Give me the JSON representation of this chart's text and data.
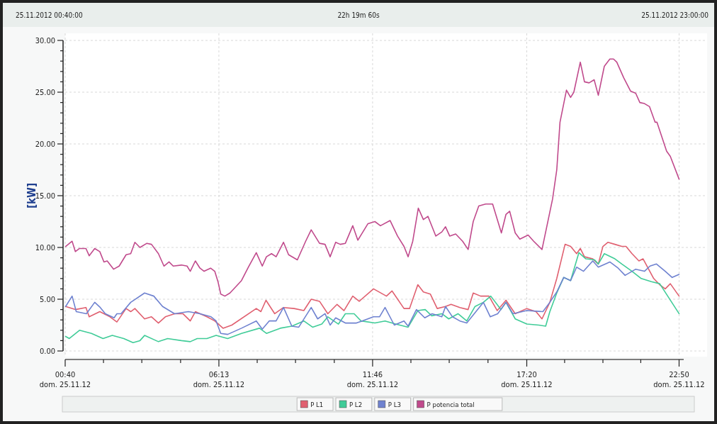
{
  "chart_data": {
    "type": "line",
    "ylabel": "[kW]",
    "annotations": [
      "25.11.2012 00:40:00",
      "22h 19m 60s",
      "25.11.2012 23:00:00"
    ],
    "xlim": [
      "2012-11-25T00:40",
      "2012-11-25T23:00"
    ],
    "xticks": [
      {
        "value": "2012-11-25T00:40",
        "label": "00:40\ndom. 25.11.12"
      },
      {
        "value": "2012-11-25T02:03",
        "label": null
      },
      {
        "value": "2012-11-25T03:26",
        "label": null
      },
      {
        "value": "2012-11-25T04:50",
        "label": null
      },
      {
        "value": "2012-11-25T06:13",
        "label": "06:13\ndom. 25.11.12"
      },
      {
        "value": "2012-11-25T07:36",
        "label": null
      },
      {
        "value": "2012-11-25T08:59",
        "label": null
      },
      {
        "value": "2012-11-25T10:23",
        "label": null
      },
      {
        "value": "2012-11-25T11:46",
        "label": "11:46\ndom. 25.11.12"
      },
      {
        "value": "2012-11-25T13:09",
        "label": null
      },
      {
        "value": "2012-11-25T14:32",
        "label": null
      },
      {
        "value": "2012-11-25T15:56",
        "label": null
      },
      {
        "value": "2012-11-25T17:20",
        "label": "17:20\ndom. 25.11.12"
      },
      {
        "value": "2012-11-25T18:42",
        "label": null
      },
      {
        "value": "2012-11-25T20:05",
        "label": null
      },
      {
        "value": "2012-11-25T21:27",
        "label": null
      },
      {
        "value": "2012-11-25T22:50",
        "label": "22:50\ndom. 25.11.12"
      }
    ],
    "ylim": [
      0,
      30
    ],
    "yticks": [
      {
        "value": 0,
        "label": "0.00"
      },
      {
        "value": 1,
        "label": null
      },
      {
        "value": 2,
        "label": null
      },
      {
        "value": 3,
        "label": null
      },
      {
        "value": 4,
        "label": null
      },
      {
        "value": 5,
        "label": "5.00"
      },
      {
        "value": 6,
        "label": null
      },
      {
        "value": 7,
        "label": null
      },
      {
        "value": 8,
        "label": null
      },
      {
        "value": 9,
        "label": null
      },
      {
        "value": 10,
        "label": "10.00"
      },
      {
        "value": 11,
        "label": null
      },
      {
        "value": 12,
        "label": null
      },
      {
        "value": 13,
        "label": null
      },
      {
        "value": 14,
        "label": null
      },
      {
        "value": 15,
        "label": "15.00"
      },
      {
        "value": 16,
        "label": null
      },
      {
        "value": 17,
        "label": null
      },
      {
        "value": 18,
        "label": null
      },
      {
        "value": 19,
        "label": null
      },
      {
        "value": 20,
        "label": "20.00"
      },
      {
        "value": 21,
        "label": null
      },
      {
        "value": 22,
        "label": null
      },
      {
        "value": 23,
        "label": null
      },
      {
        "value": 24,
        "label": null
      },
      {
        "value": 25,
        "label": "25.00"
      },
      {
        "value": 26,
        "label": null
      },
      {
        "value": 27,
        "label": null
      },
      {
        "value": 28,
        "label": null
      },
      {
        "value": 29,
        "label": null
      },
      {
        "value": 30,
        "label": "30.00"
      }
    ],
    "grid": true,
    "legend": "bottom",
    "marker": "none",
    "line_style": "solid",
    "series": [
      {
        "name": "P L1",
        "color": "#e06070",
        "x": [
          "2012-11-25T00:41",
          "2012-11-25T01:02",
          "2012-11-25T01:25",
          "2012-11-25T01:32",
          "2012-11-25T01:55",
          "2012-11-25T02:17",
          "2012-11-25T02:32",
          "2012-11-25T02:52",
          "2012-11-25T03:02",
          "2012-11-25T03:11",
          "2012-11-25T03:32",
          "2012-11-25T03:47",
          "2012-11-25T04:02",
          "2012-11-25T04:17",
          "2012-11-25T04:37",
          "2012-11-25T04:55",
          "2012-11-25T05:11",
          "2012-11-25T05:22",
          "2012-11-25T05:47",
          "2012-11-25T06:04",
          "2012-11-25T06:22",
          "2012-11-25T06:41",
          "2012-11-25T07:34",
          "2012-11-25T07:44",
          "2012-11-25T07:55",
          "2012-11-25T08:14",
          "2012-11-25T08:33",
          "2012-11-25T08:56",
          "2012-11-25T09:17",
          "2012-11-25T09:33",
          "2012-11-25T09:51",
          "2012-11-25T10:09",
          "2012-11-25T10:29",
          "2012-11-25T10:44",
          "2012-11-25T11:03",
          "2012-11-25T11:17",
          "2012-11-25T11:48",
          "2012-11-25T12:16",
          "2012-11-25T12:28",
          "2012-11-25T12:54",
          "2012-11-25T13:06",
          "2012-11-25T13:24",
          "2012-11-25T13:36",
          "2012-11-25T13:51",
          "2012-11-25T14:06",
          "2012-11-25T14:24",
          "2012-11-25T14:36",
          "2012-11-25T14:55",
          "2012-11-25T15:13",
          "2012-11-25T15:24",
          "2012-11-25T15:40",
          "2012-11-25T15:58",
          "2012-11-25T16:16",
          "2012-11-25T16:35",
          "2012-11-25T16:55",
          "2012-11-25T17:20",
          "2012-11-25T17:40",
          "2012-11-25T17:53",
          "2012-11-25T18:10",
          "2012-11-25T18:25",
          "2012-11-25T18:43",
          "2012-11-25T18:55",
          "2012-11-25T19:08",
          "2012-11-25T19:16",
          "2012-11-25T19:25",
          "2012-11-25T19:43",
          "2012-11-25T19:55",
          "2012-11-25T20:05",
          "2012-11-25T20:16",
          "2012-11-25T20:31",
          "2012-11-25T20:46",
          "2012-11-25T20:55",
          "2012-11-25T21:08",
          "2012-11-25T21:23",
          "2012-11-25T21:32",
          "2012-11-25T21:55",
          "2012-11-25T22:08",
          "2012-11-25T22:20",
          "2012-11-25T22:31",
          "2012-11-25T22:50"
        ],
        "values": [
          4.3,
          4.0,
          4.2,
          3.3,
          3.8,
          3.3,
          2.8,
          4.1,
          3.8,
          4.1,
          3.1,
          3.3,
          2.7,
          3.3,
          3.6,
          3.6,
          2.9,
          3.8,
          3.3,
          2.9,
          2.2,
          2.5,
          4.1,
          3.8,
          4.9,
          3.6,
          4.2,
          4.1,
          3.9,
          5.0,
          4.8,
          3.6,
          4.5,
          3.9,
          5.3,
          4.8,
          6.0,
          5.3,
          5.8,
          4.1,
          4.1,
          6.4,
          5.7,
          5.5,
          4.1,
          4.3,
          4.5,
          4.2,
          4.0,
          5.6,
          5.3,
          5.3,
          3.9,
          4.9,
          3.6,
          4.1,
          3.8,
          3.1,
          4.7,
          7.0,
          10.3,
          10.1,
          9.4,
          9.9,
          9.1,
          8.9,
          8.4,
          10.1,
          10.5,
          10.3,
          10.1,
          10.1,
          9.4,
          8.7,
          8.9,
          7.0,
          6.4,
          6.0,
          6.5,
          5.3
        ]
      },
      {
        "name": "P L2",
        "color": "#40cc98",
        "x": [
          "2012-11-25T00:41",
          "2012-11-25T00:49",
          "2012-11-25T01:11",
          "2012-11-25T01:37",
          "2012-11-25T02:02",
          "2012-11-25T02:22",
          "2012-11-25T02:47",
          "2012-11-25T03:07",
          "2012-11-25T03:22",
          "2012-11-25T03:32",
          "2012-11-25T04:02",
          "2012-11-25T04:22",
          "2012-11-25T04:52",
          "2012-11-25T05:11",
          "2012-11-25T05:26",
          "2012-11-25T05:47",
          "2012-11-25T06:07",
          "2012-11-25T06:32",
          "2012-11-25T07:02",
          "2012-11-25T07:41",
          "2012-11-25T07:56",
          "2012-11-25T08:26",
          "2012-11-25T08:51",
          "2012-11-25T09:17",
          "2012-11-25T09:36",
          "2012-11-25T09:56",
          "2012-11-25T10:09",
          "2012-11-25T10:32",
          "2012-11-25T10:47",
          "2012-11-25T11:06",
          "2012-11-25T11:21",
          "2012-11-25T11:51",
          "2012-11-25T12:13",
          "2012-11-25T12:36",
          "2012-11-25T13:03",
          "2012-11-25T13:24",
          "2012-11-25T13:40",
          "2012-11-25T13:54",
          "2012-11-25T14:16",
          "2012-11-25T14:31",
          "2012-11-25T14:51",
          "2012-11-25T15:10",
          "2012-11-25T15:28",
          "2012-11-25T15:46",
          "2012-11-25T16:02",
          "2012-11-25T16:24",
          "2012-11-25T16:35",
          "2012-11-25T16:55",
          "2012-11-25T17:20",
          "2012-11-25T17:46",
          "2012-11-25T18:01",
          "2012-11-25T18:10",
          "2012-11-25T18:25",
          "2012-11-25T18:40",
          "2012-11-25T18:55",
          "2012-11-25T19:13",
          "2012-11-25T19:28",
          "2012-11-25T19:47",
          "2012-11-25T19:55",
          "2012-11-25T20:08",
          "2012-11-25T20:31",
          "2012-11-25T20:46",
          "2012-11-25T21:08",
          "2012-11-25T21:28",
          "2012-11-25T21:50",
          "2012-11-25T22:08",
          "2012-11-25T22:50"
        ],
        "values": [
          1.4,
          1.2,
          2.0,
          1.7,
          1.2,
          1.5,
          1.2,
          0.8,
          1.0,
          1.5,
          0.9,
          1.2,
          1.0,
          0.9,
          1.2,
          1.2,
          1.5,
          1.2,
          1.7,
          2.2,
          1.7,
          2.2,
          2.4,
          2.9,
          2.3,
          2.6,
          3.3,
          2.6,
          3.6,
          3.6,
          2.9,
          2.7,
          2.9,
          2.6,
          2.3,
          3.9,
          4.0,
          3.4,
          3.6,
          3.1,
          3.6,
          2.9,
          4.3,
          4.7,
          5.3,
          4.0,
          4.7,
          3.1,
          2.6,
          2.5,
          2.4,
          3.8,
          5.6,
          7.1,
          6.8,
          9.5,
          8.9,
          8.8,
          8.4,
          9.4,
          8.9,
          8.4,
          7.7,
          7.0,
          6.7,
          6.5,
          3.6
        ]
      },
      {
        "name": "P L3",
        "color": "#6f82d0",
        "x": [
          "2012-11-25T00:41",
          "2012-11-25T00:55",
          "2012-11-25T01:04",
          "2012-11-25T01:26",
          "2012-11-25T01:44",
          "2012-11-25T01:56",
          "2012-11-25T02:07",
          "2012-11-25T02:26",
          "2012-11-25T02:32",
          "2012-11-25T02:41",
          "2012-11-25T03:02",
          "2012-11-25T03:32",
          "2012-11-25T03:52",
          "2012-11-25T04:11",
          "2012-11-25T04:37",
          "2012-11-25T05:07",
          "2012-11-25T05:32",
          "2012-11-25T05:56",
          "2012-11-25T06:07",
          "2012-11-25T06:17",
          "2012-11-25T06:32",
          "2012-11-25T07:02",
          "2012-11-25T07:34",
          "2012-11-25T07:47",
          "2012-11-25T08:02",
          "2012-11-25T08:17",
          "2012-11-25T08:33",
          "2012-11-25T08:51",
          "2012-11-25T09:06",
          "2012-11-25T09:33",
          "2012-11-25T09:47",
          "2012-11-25T10:03",
          "2012-11-25T10:14",
          "2012-11-25T10:26",
          "2012-11-25T10:47",
          "2012-11-25T11:11",
          "2012-11-25T11:48",
          "2012-11-25T12:01",
          "2012-11-25T12:13",
          "2012-11-25T12:33",
          "2012-11-25T12:54",
          "2012-11-25T13:03",
          "2012-11-25T13:21",
          "2012-11-25T13:39",
          "2012-11-25T13:55",
          "2012-11-25T14:16",
          "2012-11-25T14:24",
          "2012-11-25T14:39",
          "2012-11-25T14:55",
          "2012-11-25T15:10",
          "2012-11-25T15:46",
          "2012-11-25T16:01",
          "2012-11-25T16:17",
          "2012-11-25T16:35",
          "2012-11-25T16:50",
          "2012-11-25T17:20",
          "2012-11-25T17:55",
          "2012-11-25T18:10",
          "2012-11-25T18:25",
          "2012-11-25T18:40",
          "2012-11-25T18:55",
          "2012-11-25T19:08",
          "2012-11-25T19:23",
          "2012-11-25T19:43",
          "2012-11-25T19:55",
          "2012-11-25T20:20",
          "2012-11-25T20:38",
          "2012-11-25T20:53",
          "2012-11-25T21:16",
          "2012-11-25T21:35",
          "2012-11-25T21:47",
          "2012-11-25T22:01",
          "2012-11-25T22:20",
          "2012-11-25T22:35",
          "2012-11-25T22:50"
        ],
        "values": [
          4.3,
          5.3,
          3.8,
          3.6,
          4.7,
          4.2,
          3.6,
          3.2,
          3.6,
          3.6,
          4.7,
          5.6,
          5.3,
          4.3,
          3.6,
          3.8,
          3.6,
          3.3,
          2.9,
          1.7,
          1.6,
          2.2,
          2.9,
          2.1,
          2.9,
          2.9,
          4.2,
          2.4,
          2.3,
          4.2,
          3.1,
          3.6,
          2.5,
          3.2,
          2.7,
          2.7,
          3.3,
          3.3,
          4.2,
          2.5,
          2.9,
          2.4,
          4.0,
          3.2,
          3.6,
          3.3,
          4.3,
          3.3,
          2.9,
          2.7,
          4.7,
          3.3,
          3.6,
          4.7,
          3.6,
          3.9,
          3.8,
          4.7,
          5.7,
          7.1,
          6.8,
          8.1,
          7.7,
          8.7,
          8.1,
          8.6,
          8.0,
          7.3,
          7.9,
          7.7,
          8.2,
          8.4,
          7.7,
          7.1,
          7.4
        ]
      },
      {
        "name": "P potencia total",
        "color": "#c04a8c",
        "x": [
          "2012-11-25T00:41",
          "2012-11-25T00:55",
          "2012-11-25T01:02",
          "2012-11-25T01:11",
          "2012-11-25T01:25",
          "2012-11-25T01:32",
          "2012-11-25T01:44",
          "2012-11-25T01:55",
          "2012-11-25T02:04",
          "2012-11-25T02:11",
          "2012-11-25T02:25",
          "2012-11-25T02:37",
          "2012-11-25T02:52",
          "2012-11-25T03:02",
          "2012-11-25T03:11",
          "2012-11-25T03:22",
          "2012-11-25T03:37",
          "2012-11-25T03:47",
          "2012-11-25T04:02",
          "2012-11-25T04:14",
          "2012-11-25T04:25",
          "2012-11-25T04:34",
          "2012-11-25T04:52",
          "2012-11-25T05:04",
          "2012-11-25T05:11",
          "2012-11-25T05:22",
          "2012-11-25T05:32",
          "2012-11-25T05:41",
          "2012-11-25T05:55",
          "2012-11-25T06:04",
          "2012-11-25T06:11",
          "2012-11-25T06:17",
          "2012-11-25T06:26",
          "2012-11-25T06:37",
          "2012-11-25T07:02",
          "2012-11-25T07:17",
          "2012-11-25T07:34",
          "2012-11-25T07:47",
          "2012-11-25T07:56",
          "2012-11-25T08:07",
          "2012-11-25T08:17",
          "2012-11-25T08:33",
          "2012-11-25T08:44",
          "2012-11-25T09:03",
          "2012-11-25T09:21",
          "2012-11-25T09:33",
          "2012-11-25T09:51",
          "2012-11-25T10:03",
          "2012-11-25T10:14",
          "2012-11-25T10:26",
          "2012-11-25T10:36",
          "2012-11-25T10:47",
          "2012-11-25T11:03",
          "2012-11-25T11:14",
          "2012-11-25T11:36",
          "2012-11-25T11:51",
          "2012-11-25T12:03",
          "2012-11-25T12:24",
          "2012-11-25T12:40",
          "2012-11-25T12:54",
          "2012-11-25T13:03",
          "2012-11-25T13:13",
          "2012-11-25T13:25",
          "2012-11-25T13:36",
          "2012-11-25T13:46",
          "2012-11-25T14:03",
          "2012-11-25T14:16",
          "2012-11-25T14:24",
          "2012-11-25T14:33",
          "2012-11-25T14:46",
          "2012-11-25T15:01",
          "2012-11-25T15:13",
          "2012-11-25T15:24",
          "2012-11-25T15:36",
          "2012-11-25T15:51",
          "2012-11-25T16:06",
          "2012-11-25T16:25",
          "2012-11-25T16:35",
          "2012-11-25T16:43",
          "2012-11-25T16:55",
          "2012-11-25T17:05",
          "2012-11-25T17:23",
          "2012-11-25T17:35",
          "2012-11-25T17:53",
          "2012-11-25T18:16",
          "2012-11-25T18:25",
          "2012-11-25T18:32",
          "2012-11-25T18:46",
          "2012-11-25T18:55",
          "2012-11-25T19:02",
          "2012-11-25T19:16",
          "2012-11-25T19:25",
          "2012-11-25T19:35",
          "2012-11-25T19:46",
          "2012-11-25T19:55",
          "2012-11-25T20:08",
          "2012-11-25T20:20",
          "2012-11-25T20:28",
          "2012-11-25T20:35",
          "2012-11-25T20:50",
          "2012-11-25T21:05",
          "2012-11-25T21:16",
          "2012-11-25T21:25",
          "2012-11-25T21:35",
          "2012-11-25T21:46",
          "2012-11-25T21:58",
          "2012-11-25T22:02",
          "2012-11-25T22:23",
          "2012-11-25T22:31",
          "2012-11-25T22:50"
        ],
        "values": [
          10.1,
          10.6,
          9.6,
          9.9,
          9.9,
          9.2,
          9.9,
          9.6,
          8.6,
          8.7,
          7.9,
          8.2,
          9.3,
          9.4,
          10.5,
          10.0,
          10.4,
          10.3,
          9.4,
          8.2,
          8.6,
          8.2,
          8.3,
          8.2,
          7.7,
          8.7,
          8.0,
          7.7,
          8.0,
          7.7,
          6.7,
          5.5,
          5.3,
          5.6,
          6.8,
          8.1,
          9.5,
          8.2,
          9.1,
          9.4,
          9.1,
          10.5,
          9.3,
          8.8,
          10.6,
          11.7,
          10.4,
          10.3,
          9.1,
          10.5,
          10.3,
          10.4,
          12.1,
          10.7,
          12.3,
          12.5,
          12.1,
          12.6,
          11.1,
          10.1,
          9.1,
          10.6,
          13.8,
          12.7,
          13.0,
          11.1,
          11.5,
          12.0,
          11.1,
          11.3,
          10.6,
          9.8,
          12.5,
          14.0,
          14.2,
          14.2,
          11.4,
          13.2,
          13.5,
          11.4,
          10.8,
          11.2,
          10.6,
          9.8,
          14.7,
          17.5,
          22.1,
          25.2,
          24.5,
          25.0,
          27.9,
          26.0,
          25.9,
          26.2,
          24.7,
          27.5,
          28.2,
          28.2,
          27.9,
          26.4,
          25.1,
          24.9,
          24.0,
          23.9,
          23.6,
          22.1,
          22.1,
          19.3,
          18.8,
          16.6
        ]
      }
    ]
  }
}
